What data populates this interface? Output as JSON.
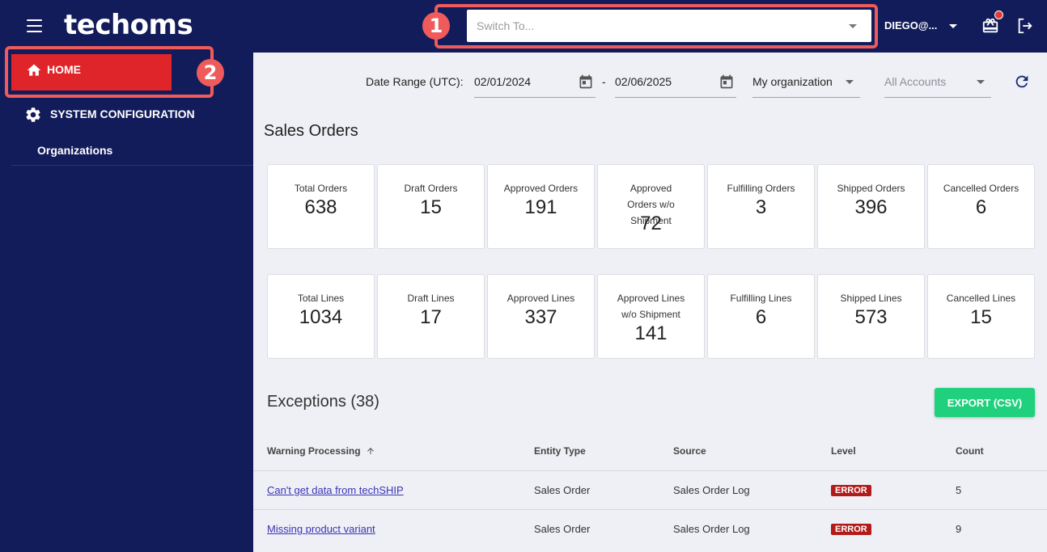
{
  "header": {
    "logo_text": "techoms",
    "switch_placeholder": "Switch To...",
    "user_label": "DIEGO@...",
    "annotation_1": "1",
    "annotation_2": "2"
  },
  "sidebar": {
    "home_label": "HOME",
    "system_config_label": "SYSTEM CONFIGURATION",
    "organizations_label": "Organizations"
  },
  "filters": {
    "date_range_label": "Date Range (UTC):",
    "date_from": "02/01/2024",
    "date_separator": "-",
    "date_to": "02/06/2025",
    "organization": "My organization",
    "accounts": "All Accounts"
  },
  "sales_orders": {
    "title": "Sales Orders",
    "orders": [
      {
        "label": "Total Orders",
        "value": "638"
      },
      {
        "label": "Draft Orders",
        "value": "15"
      },
      {
        "label": "Approved Orders",
        "value": "191"
      },
      {
        "label": "Approved Orders w/o Shipment",
        "value": "72"
      },
      {
        "label": "Fulfilling Orders",
        "value": "3"
      },
      {
        "label": "Shipped Orders",
        "value": "396"
      },
      {
        "label": "Cancelled Orders",
        "value": "6"
      }
    ],
    "lines": [
      {
        "label": "Total Lines",
        "value": "1034"
      },
      {
        "label": "Draft Lines",
        "value": "17"
      },
      {
        "label": "Approved Lines",
        "value": "337"
      },
      {
        "label": "Approved Lines w/o Shipment",
        "value": "141"
      },
      {
        "label": "Fulfilling Lines",
        "value": "6"
      },
      {
        "label": "Shipped Lines",
        "value": "573"
      },
      {
        "label": "Cancelled Lines",
        "value": "15"
      }
    ]
  },
  "exceptions": {
    "title": "Exceptions (38)",
    "export_label": "EXPORT (CSV)",
    "columns": [
      "Warning Processing",
      "Entity Type",
      "Source",
      "Level",
      "Count"
    ],
    "rows": [
      {
        "warning": "Can't get data from techSHIP",
        "entity": "Sales Order",
        "source": "Sales Order Log",
        "level": "ERROR",
        "count": "5"
      },
      {
        "warning": "Missing product variant",
        "entity": "Sales Order",
        "source": "Sales Order Log",
        "level": "ERROR",
        "count": "9"
      }
    ]
  },
  "colors": {
    "nav_bg": "#131c5a",
    "home_active": "#e0252a",
    "annotation": "#ef5b5b",
    "export_green": "#1fd17c",
    "error_badge": "#b31b1b"
  }
}
